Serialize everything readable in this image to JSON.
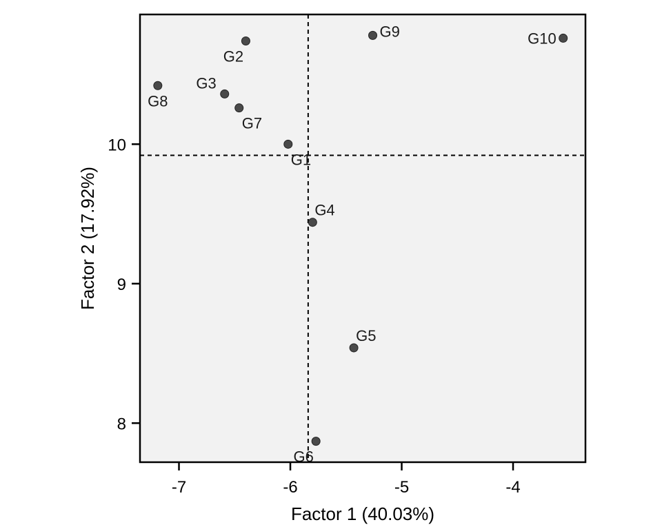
{
  "chart_data": {
    "type": "scatter",
    "title": "",
    "xlabel": "Factor 1 (40.03%)",
    "ylabel": "Factor 2 (17.92%)",
    "xlim": [
      -7.35,
      -3.35
    ],
    "ylim": [
      7.72,
      10.93
    ],
    "xticks": [
      -7,
      -6,
      -5,
      -4
    ],
    "yticks": [
      8,
      9,
      10
    ],
    "xtick_labels": [
      "-7",
      "-6",
      "-5",
      "-4"
    ],
    "ytick_labels": [
      "8",
      "9",
      "10"
    ],
    "grid": false,
    "background": "#f2f2f2",
    "point_color": "#4a4a4a",
    "reference_lines": {
      "x": -5.84,
      "y": 9.92,
      "style": "dashed"
    },
    "points": [
      {
        "label": "G1",
        "x": -6.02,
        "y": 10.0,
        "anchor": "below-right"
      },
      {
        "label": "G2",
        "x": -6.4,
        "y": 10.74,
        "anchor": "below-left"
      },
      {
        "label": "G3",
        "x": -6.59,
        "y": 10.36,
        "anchor": "above-left"
      },
      {
        "label": "G4",
        "x": -5.8,
        "y": 9.44,
        "anchor": "above-right"
      },
      {
        "label": "G5",
        "x": -5.43,
        "y": 8.54,
        "anchor": "above-right"
      },
      {
        "label": "G6",
        "x": -5.77,
        "y": 7.87,
        "anchor": "below-left"
      },
      {
        "label": "G7",
        "x": -6.46,
        "y": 10.26,
        "anchor": "below-right"
      },
      {
        "label": "G8",
        "x": -7.19,
        "y": 10.42,
        "anchor": "below"
      },
      {
        "label": "G9",
        "x": -5.26,
        "y": 10.78,
        "anchor": "right"
      },
      {
        "label": "G10",
        "x": -3.55,
        "y": 10.76,
        "anchor": "left"
      }
    ]
  }
}
